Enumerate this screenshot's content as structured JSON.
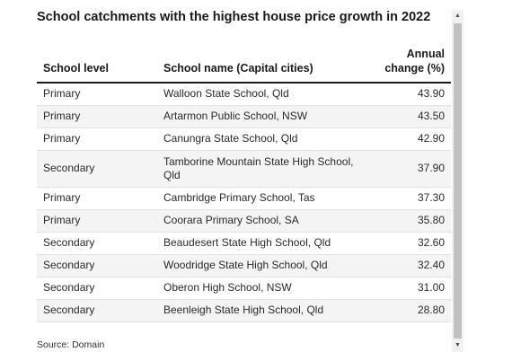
{
  "title": "School catchments with the highest house price growth in 2022",
  "table": {
    "headers": {
      "level": "School level",
      "name": "School name (Capital cities)",
      "change_line1": "Annual",
      "change_line2": "change (%)"
    },
    "rows": [
      {
        "level": "Primary",
        "name": "Walloon State School, Qld",
        "change": "43.90"
      },
      {
        "level": "Primary",
        "name": "Artarmon Public School, NSW",
        "change": "43.50"
      },
      {
        "level": "Primary",
        "name": "Canungra State School, Qld",
        "change": "42.90"
      },
      {
        "level": "Secondary",
        "name": "Tamborine Mountain State High School, Qld",
        "change": "37.90"
      },
      {
        "level": "Primary",
        "name": "Cambridge Primary School, Tas",
        "change": "37.30"
      },
      {
        "level": "Primary",
        "name": "Coorara Primary School, SA",
        "change": "35.80"
      },
      {
        "level": "Secondary",
        "name": "Beaudesert State High School, Qld",
        "change": "32.60"
      },
      {
        "level": "Secondary",
        "name": "Woodridge State High School, Qld",
        "change": "32.40"
      },
      {
        "level": "Secondary",
        "name": "Oberon High School, NSW",
        "change": "31.00"
      },
      {
        "level": "Secondary",
        "name": "Beenleigh State High School, Qld",
        "change": "28.80"
      }
    ]
  },
  "source": "Source: Domain",
  "scrollbar": {
    "up_icon": "▲",
    "down_icon": "▼"
  }
}
